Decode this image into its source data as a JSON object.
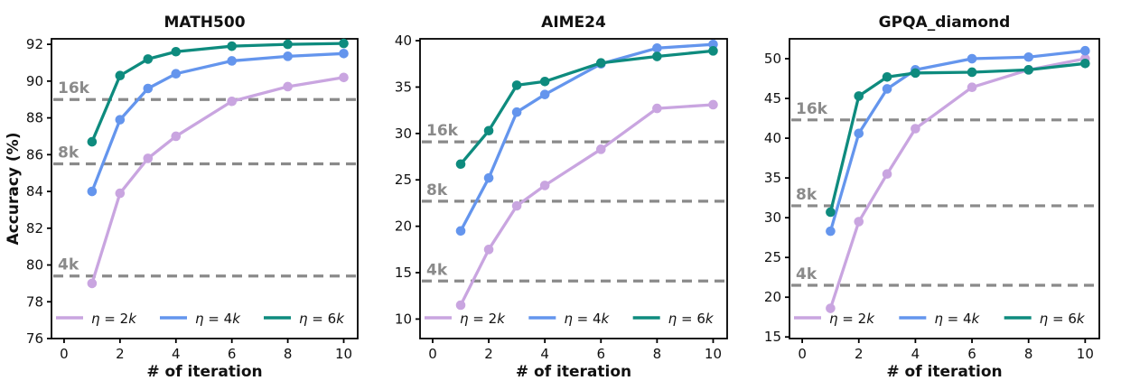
{
  "figure": {
    "background": "#ffffff",
    "axis_color": "#000000",
    "dashed_line_color": "#8a8a8a",
    "dashed_label_color": "#8a8a8a"
  },
  "chart_data": [
    {
      "type": "line",
      "title": "MATH500",
      "xlabel": "# of iteration",
      "ylabel": "Accuracy (%)",
      "x": [
        1,
        2,
        3,
        4,
        6,
        8,
        10
      ],
      "xlim": [
        -0.45,
        10.5
      ],
      "ylim": [
        76,
        92.3
      ],
      "xticks": [
        0,
        2,
        4,
        6,
        8,
        10
      ],
      "yticks": [
        76,
        78,
        80,
        82,
        84,
        86,
        88,
        90,
        92
      ],
      "grid": false,
      "legend_position": "bottom-inside",
      "series": [
        {
          "name": "η = 2k",
          "color": "#C9A5E0",
          "values": [
            79.0,
            83.9,
            85.8,
            87.0,
            88.9,
            89.7,
            90.2
          ]
        },
        {
          "name": "η = 4k",
          "color": "#6495ED",
          "values": [
            84.0,
            87.9,
            89.6,
            90.4,
            91.1,
            91.35,
            91.5
          ]
        },
        {
          "name": "η = 6k",
          "color": "#0E8B7E",
          "values": [
            86.7,
            90.3,
            91.2,
            91.6,
            91.9,
            92.0,
            92.05
          ]
        }
      ],
      "hlines": [
        {
          "label": "4k",
          "y": 79.4
        },
        {
          "label": "8k",
          "y": 85.5
        },
        {
          "label": "16k",
          "y": 89.0
        }
      ]
    },
    {
      "type": "line",
      "title": "AIME24",
      "xlabel": "# of iteration",
      "ylabel": "",
      "x": [
        1,
        2,
        3,
        4,
        6,
        8,
        10
      ],
      "xlim": [
        -0.45,
        10.5
      ],
      "ylim": [
        7.9,
        40.2
      ],
      "xticks": [
        0,
        2,
        4,
        6,
        8,
        10
      ],
      "yticks": [
        10,
        15,
        20,
        25,
        30,
        35,
        40
      ],
      "grid": false,
      "legend_position": "bottom-inside",
      "series": [
        {
          "name": "η = 2k",
          "color": "#C9A5E0",
          "values": [
            11.5,
            17.5,
            22.2,
            24.4,
            28.3,
            32.7,
            33.1
          ]
        },
        {
          "name": "η = 4k",
          "color": "#6495ED",
          "values": [
            19.5,
            25.2,
            32.3,
            34.2,
            37.5,
            39.2,
            39.6
          ]
        },
        {
          "name": "η = 6k",
          "color": "#0E8B7E",
          "values": [
            26.7,
            30.3,
            35.2,
            35.6,
            37.6,
            38.3,
            38.9
          ]
        }
      ],
      "hlines": [
        {
          "label": "4k",
          "y": 14.1
        },
        {
          "label": "8k",
          "y": 22.7
        },
        {
          "label": "16k",
          "y": 29.1
        }
      ]
    },
    {
      "type": "line",
      "title": "GPQA_diamond",
      "xlabel": "# of iteration",
      "ylabel": "",
      "x": [
        1,
        2,
        3,
        4,
        6,
        8,
        10
      ],
      "xlim": [
        -0.45,
        10.5
      ],
      "ylim": [
        14.8,
        52.5
      ],
      "xticks": [
        0,
        2,
        4,
        6,
        8,
        10
      ],
      "yticks": [
        15,
        20,
        25,
        30,
        35,
        40,
        45,
        50
      ],
      "grid": false,
      "legend_position": "bottom-inside",
      "series": [
        {
          "name": "η = 2k",
          "color": "#C9A5E0",
          "values": [
            18.6,
            29.5,
            35.5,
            41.2,
            46.4,
            48.6,
            50.0
          ]
        },
        {
          "name": "η = 4k",
          "color": "#6495ED",
          "values": [
            28.3,
            40.6,
            46.2,
            48.6,
            50.0,
            50.2,
            51.0
          ]
        },
        {
          "name": "η = 6k",
          "color": "#0E8B7E",
          "values": [
            30.7,
            45.3,
            47.7,
            48.2,
            48.3,
            48.6,
            49.4
          ]
        }
      ],
      "hlines": [
        {
          "label": "4k",
          "y": 21.5
        },
        {
          "label": "8k",
          "y": 31.5
        },
        {
          "label": "16k",
          "y": 42.3
        }
      ]
    }
  ]
}
